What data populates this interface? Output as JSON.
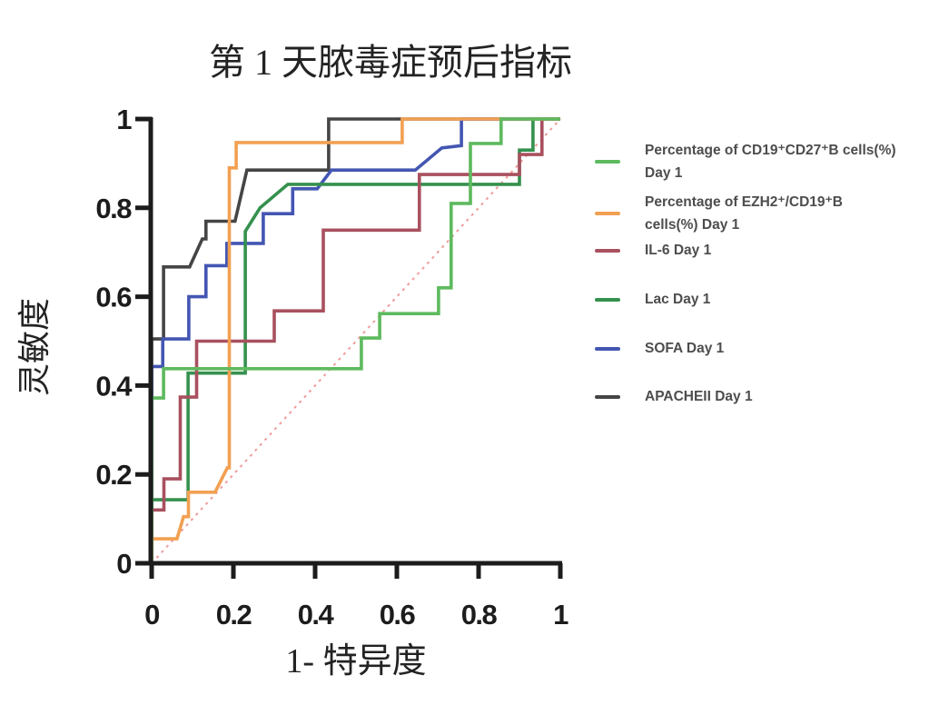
{
  "figure": {
    "title": "第 1 天脓毒症预后指标"
  },
  "chart_data": {
    "type": "line",
    "subtype": "roc-curves",
    "title": "第 1 天脓毒症预后指标",
    "xlabel": "1- 特异度",
    "ylabel": "灵敏度",
    "xlim": [
      0,
      1
    ],
    "ylim": [
      0,
      1
    ],
    "xticks": [
      0,
      0.2,
      0.4,
      0.6,
      0.8,
      1
    ],
    "yticks": [
      0,
      0.2,
      0.4,
      0.6,
      0.8,
      1
    ],
    "xtick_labels": [
      "0",
      "0.2",
      "0.4",
      "0.6",
      "0.8",
      "1"
    ],
    "ytick_labels": [
      "0",
      "0.2",
      "0.4",
      "0.6",
      "0.8",
      "1"
    ],
    "grid": false,
    "legend_position": "right",
    "axis_color": "#1c1c1c",
    "reference_line": {
      "name": "chance-diagonal",
      "color": "#f09b9b",
      "style": "dotted",
      "points": [
        [
          0,
          0
        ],
        [
          1,
          1
        ]
      ]
    },
    "series": [
      {
        "name": "cd19-cd27-b-cells-day1",
        "legend_lines": [
          "Percentage of CD19⁺CD27⁺B cells(%)",
          "Day 1"
        ],
        "color": "#5eba5e",
        "points": [
          [
            0,
            0
          ],
          [
            0,
            0.372
          ],
          [
            0.029,
            0.372
          ],
          [
            0.029,
            0.438
          ],
          [
            0.513,
            0.438
          ],
          [
            0.513,
            0.507
          ],
          [
            0.558,
            0.507
          ],
          [
            0.558,
            0.562
          ],
          [
            0.702,
            0.562
          ],
          [
            0.702,
            0.62
          ],
          [
            0.733,
            0.62
          ],
          [
            0.733,
            0.81
          ],
          [
            0.78,
            0.81
          ],
          [
            0.78,
            0.945
          ],
          [
            0.855,
            0.945
          ],
          [
            0.855,
            1
          ],
          [
            1,
            1
          ]
        ]
      },
      {
        "name": "ezh2-cd19-b-cells-day1",
        "legend_lines": [
          "Percentage of EZH2⁺/CD19⁺B",
          "cells(%) Day 1"
        ],
        "color": "#f2a052",
        "points": [
          [
            0,
            0
          ],
          [
            0,
            0.055
          ],
          [
            0.062,
            0.055
          ],
          [
            0.078,
            0.105
          ],
          [
            0.09,
            0.105
          ],
          [
            0.09,
            0.16
          ],
          [
            0.155,
            0.16
          ],
          [
            0.185,
            0.215
          ],
          [
            0.19,
            0.215
          ],
          [
            0.19,
            0.89
          ],
          [
            0.207,
            0.89
          ],
          [
            0.207,
            0.947
          ],
          [
            0.613,
            0.947
          ],
          [
            0.613,
            1
          ],
          [
            1,
            1
          ]
        ]
      },
      {
        "name": "il-6-day1",
        "legend_lines": [
          "IL-6 Day 1"
        ],
        "color": "#a9505f",
        "points": [
          [
            0,
            0
          ],
          [
            0,
            0.12
          ],
          [
            0.03,
            0.12
          ],
          [
            0.03,
            0.19
          ],
          [
            0.07,
            0.19
          ],
          [
            0.07,
            0.374
          ],
          [
            0.11,
            0.374
          ],
          [
            0.11,
            0.5
          ],
          [
            0.3,
            0.5
          ],
          [
            0.3,
            0.568
          ],
          [
            0.42,
            0.568
          ],
          [
            0.42,
            0.75
          ],
          [
            0.655,
            0.75
          ],
          [
            0.655,
            0.875
          ],
          [
            0.9,
            0.875
          ],
          [
            0.9,
            0.92
          ],
          [
            0.955,
            0.92
          ],
          [
            0.955,
            1
          ],
          [
            1,
            1
          ]
        ]
      },
      {
        "name": "lac-day1",
        "legend_lines": [
          "Lac Day 1"
        ],
        "color": "#35914e",
        "points": [
          [
            0,
            0
          ],
          [
            0,
            0.143
          ],
          [
            0.089,
            0.143
          ],
          [
            0.089,
            0.428
          ],
          [
            0.229,
            0.428
          ],
          [
            0.229,
            0.747
          ],
          [
            0.265,
            0.8
          ],
          [
            0.333,
            0.853
          ],
          [
            0.9,
            0.853
          ],
          [
            0.9,
            0.93
          ],
          [
            0.933,
            0.93
          ],
          [
            0.933,
            1
          ],
          [
            1,
            1
          ]
        ]
      },
      {
        "name": "sofa-day1",
        "legend_lines": [
          "SOFA Day 1"
        ],
        "color": "#4356b2",
        "points": [
          [
            0,
            0
          ],
          [
            0,
            0.443
          ],
          [
            0.027,
            0.443
          ],
          [
            0.027,
            0.505
          ],
          [
            0.091,
            0.505
          ],
          [
            0.091,
            0.6
          ],
          [
            0.133,
            0.6
          ],
          [
            0.133,
            0.67
          ],
          [
            0.184,
            0.67
          ],
          [
            0.184,
            0.72
          ],
          [
            0.273,
            0.72
          ],
          [
            0.273,
            0.787
          ],
          [
            0.345,
            0.787
          ],
          [
            0.345,
            0.843
          ],
          [
            0.405,
            0.843
          ],
          [
            0.44,
            0.885
          ],
          [
            0.645,
            0.885
          ],
          [
            0.71,
            0.935
          ],
          [
            0.758,
            0.94
          ],
          [
            0.758,
            1
          ],
          [
            1,
            1
          ]
        ]
      },
      {
        "name": "apacheii-day1",
        "legend_lines": [
          "APACHEII Day 1"
        ],
        "color": "#454545",
        "points": [
          [
            0,
            0
          ],
          [
            0,
            0.505
          ],
          [
            0.029,
            0.505
          ],
          [
            0.029,
            0.667
          ],
          [
            0.093,
            0.667
          ],
          [
            0.124,
            0.73
          ],
          [
            0.133,
            0.73
          ],
          [
            0.133,
            0.77
          ],
          [
            0.204,
            0.77
          ],
          [
            0.233,
            0.885
          ],
          [
            0.433,
            0.885
          ],
          [
            0.433,
            1
          ],
          [
            1,
            1
          ]
        ]
      }
    ]
  }
}
